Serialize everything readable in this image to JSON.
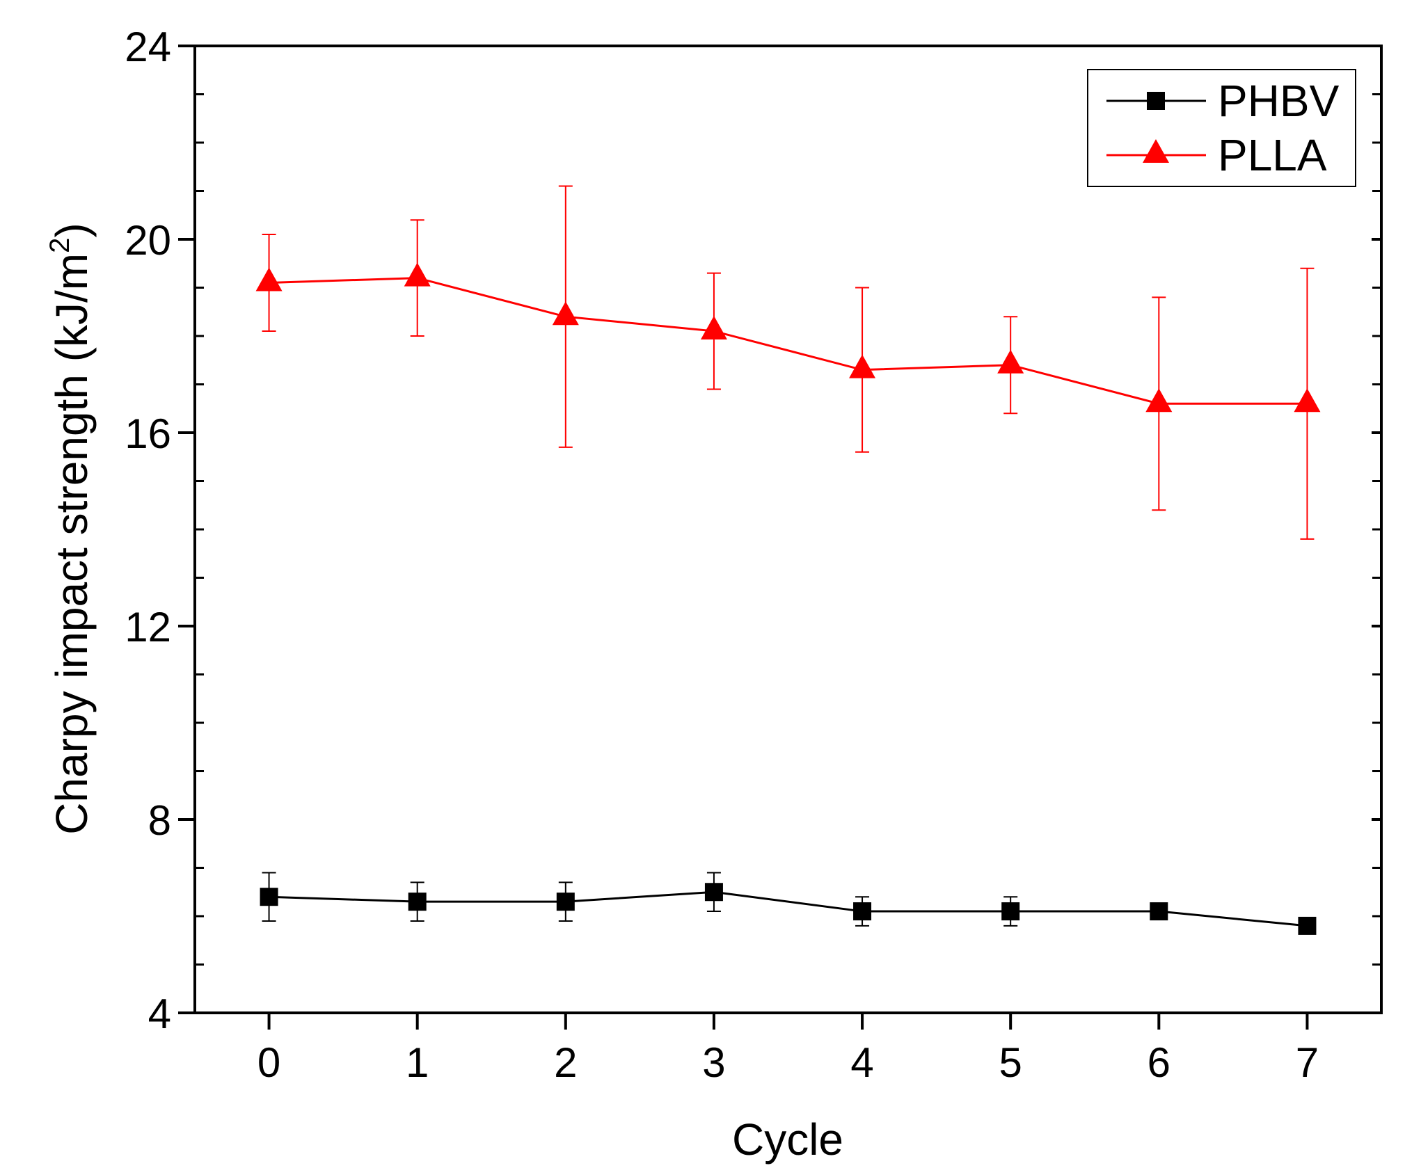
{
  "chart_data": {
    "type": "line",
    "title": "",
    "xlabel": "Cycle",
    "ylabel": "Charpy impact strength (kJ/m²)",
    "ylabel_main": "Charpy impact strength (kJ/m",
    "ylabel_sup": "2",
    "ylabel_close": ")",
    "xlim": [
      -0.5,
      7.5
    ],
    "ylim": [
      4,
      24
    ],
    "x_ticks": [
      0,
      1,
      2,
      3,
      4,
      5,
      6,
      7
    ],
    "y_ticks": [
      4,
      8,
      12,
      16,
      20,
      24
    ],
    "y_minor_step": 1,
    "grid": false,
    "legend_position": "top-right",
    "x": [
      0,
      1,
      2,
      3,
      4,
      5,
      6,
      7
    ],
    "series": [
      {
        "name": "PHBV",
        "color": "#000000",
        "marker": "square",
        "values": [
          6.4,
          6.3,
          6.3,
          6.5,
          6.1,
          6.1,
          6.1,
          5.8
        ],
        "errors": [
          0.5,
          0.4,
          0.4,
          0.4,
          0.3,
          0.3,
          0.1,
          0.15
        ]
      },
      {
        "name": "PLLA",
        "color": "#ff0000",
        "marker": "triangle",
        "values": [
          19.1,
          19.2,
          18.4,
          18.1,
          17.3,
          17.4,
          16.6,
          16.6
        ],
        "errors": [
          1.0,
          1.2,
          2.7,
          1.2,
          1.7,
          1.0,
          2.2,
          2.8
        ]
      }
    ]
  }
}
